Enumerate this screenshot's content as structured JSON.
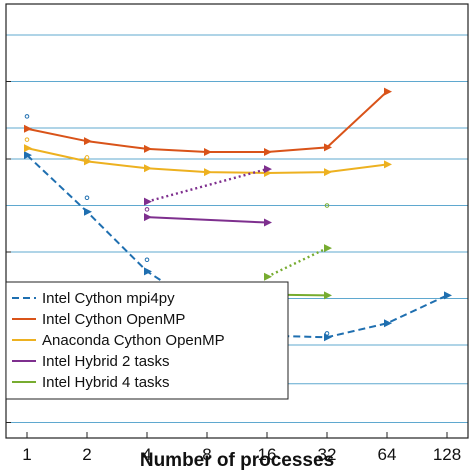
{
  "chart_data": {
    "type": "line",
    "title": "",
    "xlabel": "Number of processes",
    "ylabel": "",
    "x_scale": "log2",
    "x_ticks": [
      "1",
      "2",
      "4",
      "8",
      "16",
      "32",
      "64",
      "128"
    ],
    "grid": "horizontal",
    "legend_position": "bottom-left",
    "series": [
      {
        "name": "Intel Cython mpi4py",
        "color": "#1f6fb0",
        "line_style": "dashed",
        "x": [
          1,
          2,
          4,
          8,
          16,
          32,
          64,
          128
        ],
        "y": [
          6.85,
          6.12,
          5.35,
          4.85,
          4.52,
          4.5,
          4.68,
          5.04
        ]
      },
      {
        "name": "Intel Cython OpenMP",
        "color": "#d95319",
        "line_style": "solid",
        "x": [
          1,
          2,
          4,
          8,
          16,
          32,
          64
        ],
        "y": [
          7.19,
          7.03,
          6.93,
          6.89,
          6.89,
          6.95,
          7.67
        ]
      },
      {
        "name": "Anaconda Cython OpenMP",
        "color": "#edb120",
        "line_style": "solid",
        "x": [
          1,
          2,
          4,
          8,
          16,
          32,
          64
        ],
        "y": [
          6.94,
          6.77,
          6.68,
          6.63,
          6.62,
          6.63,
          6.73
        ]
      },
      {
        "name": "Intel Hybrid 2 tasks",
        "color": "#7e2f8e",
        "line_style": "mixed",
        "segments": [
          {
            "style": "dotted",
            "x": [
              4,
              16
            ],
            "y": [
              6.25,
              6.67
            ]
          },
          {
            "style": "solid",
            "x": [
              4,
              16
            ],
            "y": [
              6.05,
              5.98
            ]
          }
        ]
      },
      {
        "name": "Intel Hybrid 4 tasks",
        "color": "#77ac30",
        "line_style": "mixed",
        "segments": [
          {
            "style": "dotted",
            "x": [
              16,
              32
            ],
            "y": [
              5.28,
              5.65
            ]
          },
          {
            "style": "solid",
            "x": [
              16,
              32
            ],
            "y": [
              5.05,
              5.04
            ]
          }
        ]
      }
    ],
    "extra_markers": [
      {
        "color": "#1f6fb0",
        "x": [
          1,
          2,
          4,
          8,
          16,
          32
        ],
        "y": [
          7.35,
          6.3,
          5.5,
          5.0,
          4.55,
          4.55
        ]
      },
      {
        "color": "#edb120",
        "x": [
          1,
          2
        ],
        "y": [
          7.05,
          6.82
        ]
      },
      {
        "color": "#7e2f8e",
        "x": [
          4
        ],
        "y": [
          6.15
        ]
      },
      {
        "color": "#77ac30",
        "x": [
          32
        ],
        "y": [
          6.2
        ]
      }
    ]
  }
}
